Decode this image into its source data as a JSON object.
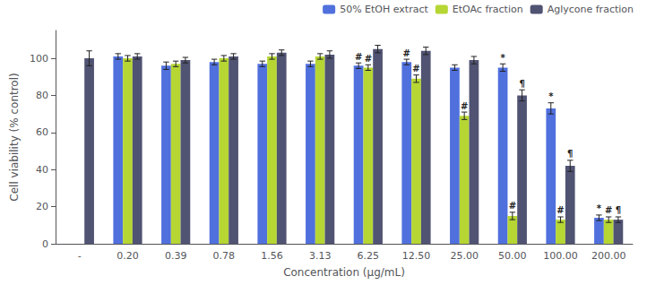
{
  "chart_data": {
    "type": "bar",
    "xlabel": "Concentration (μg/mL)",
    "ylabel": "Cell viability (% control)",
    "categories": [
      "-",
      "0.20",
      "0.39",
      "0.78",
      "1.56",
      "3.13",
      "6.25",
      "12.50",
      "25.00",
      "50.00",
      "100.00",
      "200.00"
    ],
    "series": [
      {
        "name": "50% EtOH extract",
        "values": [
          null,
          101,
          96,
          98,
          97,
          97,
          96,
          98,
          95,
          95,
          73,
          14
        ],
        "errors": [
          null,
          1.5,
          2,
          1.5,
          1.5,
          1.5,
          1.5,
          1.5,
          1.5,
          2,
          3,
          1.5
        ]
      },
      {
        "name": "EtOAc fraction",
        "values": [
          null,
          100,
          97,
          100,
          101,
          101,
          95,
          89,
          69,
          15,
          13,
          13
        ],
        "errors": [
          null,
          1.5,
          1.5,
          1.5,
          1.5,
          1.5,
          1.5,
          2,
          2,
          2,
          1.5,
          1.5
        ]
      },
      {
        "name": "Aglycone fraction",
        "values": [
          100,
          101,
          99,
          101,
          103,
          102,
          105,
          104,
          99,
          80,
          42,
          13
        ],
        "errors": [
          4,
          1.5,
          1.5,
          1.5,
          1.5,
          2,
          2,
          2,
          2,
          3,
          3,
          1.5
        ]
      }
    ],
    "annotations": [
      {
        "series": "50% EtOH extract",
        "category": "6.25",
        "text": "#"
      },
      {
        "series": "50% EtOH extract",
        "category": "12.50",
        "text": "#"
      },
      {
        "series": "50% EtOH extract",
        "category": "50.00",
        "text": "*"
      },
      {
        "series": "50% EtOH extract",
        "category": "100.00",
        "text": "*"
      },
      {
        "series": "50% EtOH extract",
        "category": "200.00",
        "text": "*"
      },
      {
        "series": "EtOAc fraction",
        "category": "6.25",
        "text": "#"
      },
      {
        "series": "EtOAc fraction",
        "category": "12.50",
        "text": "#"
      },
      {
        "series": "EtOAc fraction",
        "category": "25.00",
        "text": "#"
      },
      {
        "series": "EtOAc fraction",
        "category": "50.00",
        "text": "#"
      },
      {
        "series": "EtOAc fraction",
        "category": "100.00",
        "text": "#"
      },
      {
        "series": "EtOAc fraction",
        "category": "200.00",
        "text": "#"
      },
      {
        "series": "Aglycone fraction",
        "category": "50.00",
        "text": "¶"
      },
      {
        "series": "Aglycone fraction",
        "category": "100.00",
        "text": "¶"
      },
      {
        "series": "Aglycone fraction",
        "category": "200.00",
        "text": "¶"
      }
    ],
    "ylim": [
      0,
      115
    ],
    "yticks": [
      0,
      20,
      40,
      60,
      80,
      100
    ],
    "grid": false,
    "legend": "upper right"
  }
}
